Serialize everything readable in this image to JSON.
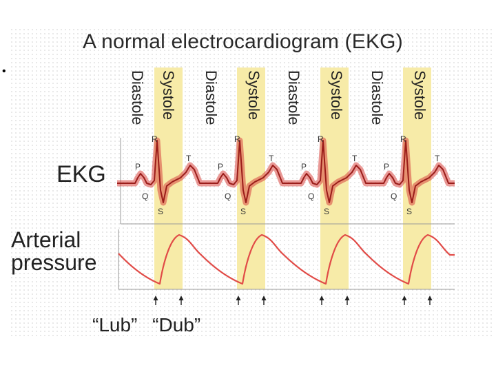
{
  "title": "A normal electrocardiogram (EKG)",
  "bullet": "•",
  "phases": [
    "Diastole",
    "Systole",
    "Diastole",
    "Systole",
    "Diastole",
    "Systole",
    "Diastole",
    "Systole"
  ],
  "rows": {
    "ekg_label": "EKG",
    "pressure_label_line1": "Arterial",
    "pressure_label_line2": "pressure"
  },
  "wave_labels": {
    "p": "P",
    "q": "Q",
    "r": "R",
    "s": "S",
    "t": "T"
  },
  "heart_sounds": {
    "lub": "“Lub”",
    "dub": "“Dub”"
  },
  "beats": 4,
  "colors": {
    "systole_band": "#f7eba8",
    "ekg_trace": "#d8453f",
    "pressure_trace": "#e14b47",
    "axis": "#999999",
    "text": "#222222"
  }
}
